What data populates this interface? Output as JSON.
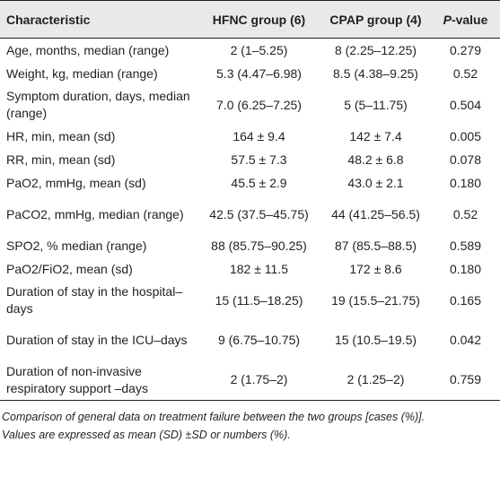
{
  "table": {
    "headers": {
      "characteristic": "Characteristic",
      "hfnc": "HFNC group (6)",
      "cpap": "CPAP group (4)",
      "p_value_letter": "P",
      "p_value_suffix": "-value"
    },
    "rows": [
      {
        "characteristic": "Age, months, median (range)",
        "hfnc": "2 (1–5.25)",
        "cpap": "8 (2.25–12.25)",
        "p": "0.279"
      },
      {
        "characteristic": "Weight, kg, median (range)",
        "hfnc": "5.3 (4.47–6.98)",
        "cpap": "8.5 (4.38–9.25)",
        "p": "0.52"
      },
      {
        "characteristic": "Symptom duration, days, median (range)",
        "hfnc": "7.0 (6.25–7.25)",
        "cpap": "5 (5–11.75)",
        "p": "0.504"
      },
      {
        "characteristic": "HR, min, mean (sd)",
        "hfnc": "164 ± 9.4",
        "cpap": "142 ± 7.4",
        "p": "0.005"
      },
      {
        "characteristic": "RR, min, mean (sd)",
        "hfnc": "57.5 ± 7.3",
        "cpap": "48.2 ± 6.8",
        "p": "0.078"
      },
      {
        "characteristic": "PaO2, mmHg, mean (sd)",
        "hfnc": "45.5 ± 2.9",
        "cpap": "43.0 ± 2.1",
        "p": "0.180"
      },
      {
        "characteristic": "PaCO2, mmHg, median (range)",
        "hfnc": "42.5 (37.5–45.75)",
        "cpap": "44 (41.25–56.5)",
        "p": "0.52"
      },
      {
        "characteristic": "SPO2, % median (range)",
        "hfnc": "88 (85.75–90.25)",
        "cpap": "87 (85.5–88.5)",
        "p": "0.589"
      },
      {
        "characteristic": "PaO2/FiO2, mean (sd)",
        "hfnc": "182 ± 11.5",
        "cpap": "172 ± 8.6",
        "p": "0.180"
      },
      {
        "characteristic": "Duration of stay in the hospital–days",
        "hfnc": "15 (11.5–18.25)",
        "cpap": "19 (15.5–21.75)",
        "p": "0.165"
      },
      {
        "characteristic": "Duration of stay in the ICU–days",
        "hfnc": "9 (6.75–10.75)",
        "cpap": "15 (10.5–19.5)",
        "p": "0.042"
      },
      {
        "characteristic": "Duration of non-invasive respiratory support –days",
        "hfnc": "2 (1.75–2)",
        "cpap": "2 (1.25–2)",
        "p": "0.759"
      }
    ]
  },
  "footnote": {
    "line1": "Comparison of general data on treatment failure between the two groups [cases (%)].",
    "line2": "Values are expressed as mean (SD) ±SD or numbers (%)."
  },
  "colors": {
    "header_background": "#e9e9ea",
    "text": "#231f20",
    "rule": "#231f20"
  }
}
